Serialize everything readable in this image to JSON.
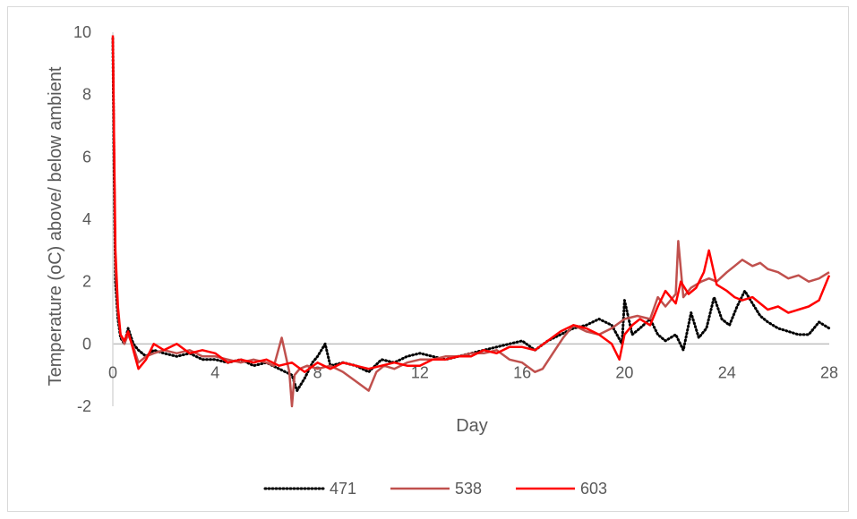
{
  "chart_data": {
    "type": "line",
    "title": "",
    "xlabel": "Day",
    "ylabel": "Temperature (oC) above/ below ambient",
    "xlim": [
      0,
      28
    ],
    "ylim": [
      -2,
      10
    ],
    "x_ticks": [
      0,
      4,
      8,
      12,
      16,
      20,
      24,
      28
    ],
    "y_ticks": [
      -2,
      0,
      2,
      4,
      6,
      8,
      10
    ],
    "x_tick_labels": [
      "0",
      "4",
      "8",
      "12",
      "16",
      "20",
      "24",
      "28"
    ],
    "y_tick_labels": [
      "-2",
      "0",
      "2",
      "4",
      "6",
      "8",
      "10"
    ],
    "grid": false,
    "legend_position": "bottom",
    "series": [
      {
        "name": "471",
        "color": "#000000",
        "style": "dotted",
        "x": [
          0,
          0.05,
          0.1,
          0.2,
          0.3,
          0.45,
          0.6,
          0.8,
          1.0,
          1.3,
          1.6,
          2.0,
          2.5,
          3.0,
          3.5,
          4.0,
          4.5,
          5.0,
          5.5,
          6.0,
          6.5,
          7.0,
          7.2,
          7.5,
          7.8,
          8.0,
          8.3,
          8.5,
          9.0,
          9.5,
          10.0,
          10.5,
          11.0,
          11.5,
          12.0,
          12.5,
          13.0,
          13.5,
          14.0,
          14.5,
          15.0,
          15.5,
          16.0,
          16.5,
          17.0,
          17.5,
          18.0,
          18.5,
          19.0,
          19.5,
          19.9,
          20.0,
          20.3,
          20.6,
          21.0,
          21.3,
          21.6,
          22.0,
          22.3,
          22.6,
          22.9,
          23.2,
          23.5,
          23.8,
          24.1,
          24.4,
          24.7,
          25.0,
          25.3,
          25.6,
          26.0,
          26.4,
          26.8,
          27.2,
          27.6,
          28.0
        ],
        "y": [
          9.8,
          5.5,
          2.0,
          0.8,
          0.2,
          0.0,
          0.5,
          0.0,
          -0.2,
          -0.4,
          -0.2,
          -0.3,
          -0.4,
          -0.3,
          -0.5,
          -0.5,
          -0.6,
          -0.5,
          -0.7,
          -0.6,
          -0.8,
          -1.0,
          -1.5,
          -1.1,
          -0.6,
          -0.4,
          0.0,
          -0.7,
          -0.6,
          -0.7,
          -0.9,
          -0.5,
          -0.6,
          -0.4,
          -0.3,
          -0.4,
          -0.5,
          -0.4,
          -0.3,
          -0.2,
          -0.1,
          0.0,
          0.1,
          -0.2,
          0.1,
          0.3,
          0.5,
          0.6,
          0.8,
          0.6,
          0.0,
          1.4,
          0.3,
          0.5,
          0.8,
          0.3,
          0.1,
          0.3,
          -0.2,
          1.0,
          0.2,
          0.5,
          1.5,
          0.8,
          0.6,
          1.2,
          1.7,
          1.3,
          0.9,
          0.7,
          0.5,
          0.4,
          0.3,
          0.3,
          0.7,
          0.5
        ]
      },
      {
        "name": "538",
        "color": "#c0504d",
        "style": "solid",
        "x": [
          0,
          0.05,
          0.1,
          0.2,
          0.3,
          0.45,
          0.6,
          0.8,
          1.0,
          1.3,
          1.6,
          2.0,
          2.5,
          3.0,
          3.5,
          4.0,
          4.5,
          5.0,
          5.5,
          6.0,
          6.3,
          6.6,
          6.9,
          7.0,
          7.1,
          7.3,
          7.6,
          8.0,
          8.5,
          9.0,
          9.5,
          10.0,
          10.3,
          10.6,
          11.0,
          11.5,
          12.0,
          12.5,
          13.0,
          13.5,
          14.0,
          14.5,
          15.0,
          15.5,
          16.0,
          16.5,
          16.8,
          17.2,
          17.6,
          18.0,
          18.5,
          19.0,
          19.5,
          20.0,
          20.5,
          21.0,
          21.3,
          21.6,
          22.0,
          22.1,
          22.3,
          22.6,
          23.0,
          23.3,
          23.6,
          24.0,
          24.3,
          24.6,
          25.0,
          25.3,
          25.6,
          26.0,
          26.4,
          26.8,
          27.2,
          27.6,
          28.0
        ],
        "y": [
          9.8,
          6.0,
          2.5,
          1.0,
          0.3,
          0.0,
          0.3,
          -0.1,
          -0.6,
          -0.4,
          -0.3,
          -0.2,
          -0.3,
          -0.2,
          -0.4,
          -0.4,
          -0.5,
          -0.6,
          -0.5,
          -0.6,
          -0.7,
          0.2,
          -0.9,
          -2.0,
          -1.0,
          -0.8,
          -0.7,
          -0.8,
          -0.7,
          -0.9,
          -1.2,
          -1.5,
          -0.9,
          -0.7,
          -0.8,
          -0.6,
          -0.5,
          -0.5,
          -0.4,
          -0.4,
          -0.3,
          -0.3,
          -0.2,
          -0.5,
          -0.6,
          -0.9,
          -0.8,
          -0.3,
          0.2,
          0.6,
          0.4,
          0.3,
          0.5,
          0.8,
          0.9,
          0.8,
          1.5,
          1.2,
          1.6,
          3.3,
          1.5,
          1.8,
          2.0,
          2.1,
          2.0,
          2.3,
          2.5,
          2.7,
          2.5,
          2.6,
          2.4,
          2.3,
          2.1,
          2.2,
          2.0,
          2.1,
          2.3
        ]
      },
      {
        "name": "603",
        "color": "#ff0000",
        "style": "solid",
        "x": [
          0,
          0.05,
          0.1,
          0.2,
          0.3,
          0.45,
          0.6,
          0.8,
          1.0,
          1.3,
          1.6,
          2.0,
          2.5,
          3.0,
          3.5,
          4.0,
          4.5,
          5.0,
          5.5,
          6.0,
          6.5,
          7.0,
          7.5,
          8.0,
          8.5,
          9.0,
          9.5,
          10.0,
          10.5,
          11.0,
          11.5,
          12.0,
          12.5,
          13.0,
          13.5,
          14.0,
          14.5,
          15.0,
          15.5,
          16.0,
          16.5,
          17.0,
          17.5,
          18.0,
          18.5,
          19.0,
          19.5,
          19.8,
          20.0,
          20.3,
          20.6,
          21.0,
          21.3,
          21.6,
          22.0,
          22.2,
          22.5,
          22.8,
          23.1,
          23.3,
          23.6,
          24.0,
          24.3,
          24.6,
          25.0,
          25.3,
          25.6,
          26.0,
          26.4,
          26.8,
          27.2,
          27.6,
          28.0
        ],
        "y": [
          9.9,
          6.5,
          3.0,
          1.2,
          0.3,
          0.1,
          0.4,
          -0.2,
          -0.8,
          -0.5,
          0.0,
          -0.2,
          0.0,
          -0.3,
          -0.2,
          -0.3,
          -0.6,
          -0.5,
          -0.6,
          -0.5,
          -0.7,
          -0.6,
          -0.9,
          -0.6,
          -0.8,
          -0.6,
          -0.7,
          -0.8,
          -0.7,
          -0.6,
          -0.7,
          -0.7,
          -0.5,
          -0.5,
          -0.4,
          -0.4,
          -0.2,
          -0.3,
          -0.1,
          -0.1,
          -0.2,
          0.1,
          0.4,
          0.6,
          0.5,
          0.3,
          0.0,
          -0.5,
          0.3,
          0.6,
          0.8,
          0.6,
          1.2,
          1.7,
          1.3,
          2.0,
          1.6,
          1.8,
          2.3,
          3.0,
          1.9,
          1.7,
          1.5,
          1.4,
          1.5,
          1.3,
          1.1,
          1.2,
          1.0,
          1.1,
          1.2,
          1.4,
          2.2
        ]
      }
    ]
  }
}
